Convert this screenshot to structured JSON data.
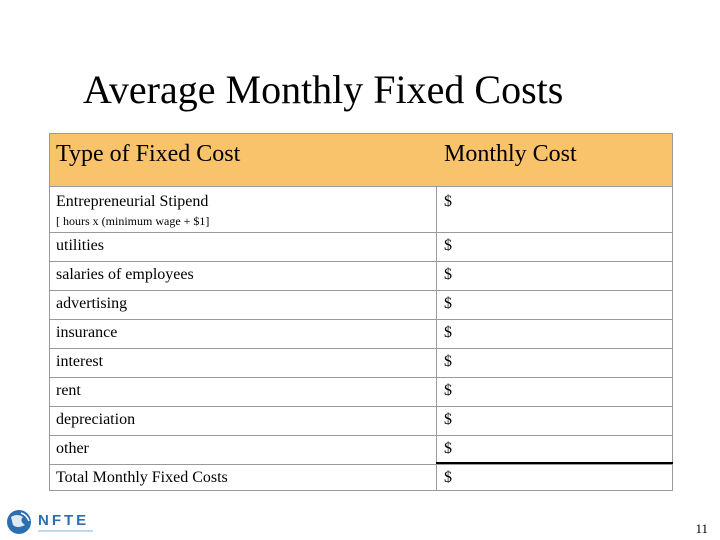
{
  "slide": {
    "title": "Average Monthly Fixed Costs",
    "page_number": "11"
  },
  "table": {
    "headers": [
      "Type of Fixed Cost",
      "Monthly Cost"
    ],
    "stipend": {
      "label": "Entrepreneurial Stipend",
      "note": "[ hours x (minimum wage + $1]",
      "cost": "$"
    },
    "rows": [
      {
        "label": "utilities",
        "cost": "$"
      },
      {
        "label": "salaries of employees",
        "cost": "$"
      },
      {
        "label": "advertising",
        "cost": "$"
      },
      {
        "label": "insurance",
        "cost": "$"
      },
      {
        "label": "interest",
        "cost": "$"
      },
      {
        "label": "rent",
        "cost": "$"
      },
      {
        "label": "depreciation",
        "cost": "$"
      },
      {
        "label": "other",
        "cost": "$"
      },
      {
        "label": "Total Monthly Fixed Costs",
        "cost": "$"
      }
    ]
  },
  "logo": {
    "text": "NFTE",
    "colors": {
      "primary": "#2b6fb0",
      "light": "#7fb2df"
    }
  },
  "colors": {
    "header_fill": "#f8c36a",
    "grid": "#9a9a9a"
  }
}
